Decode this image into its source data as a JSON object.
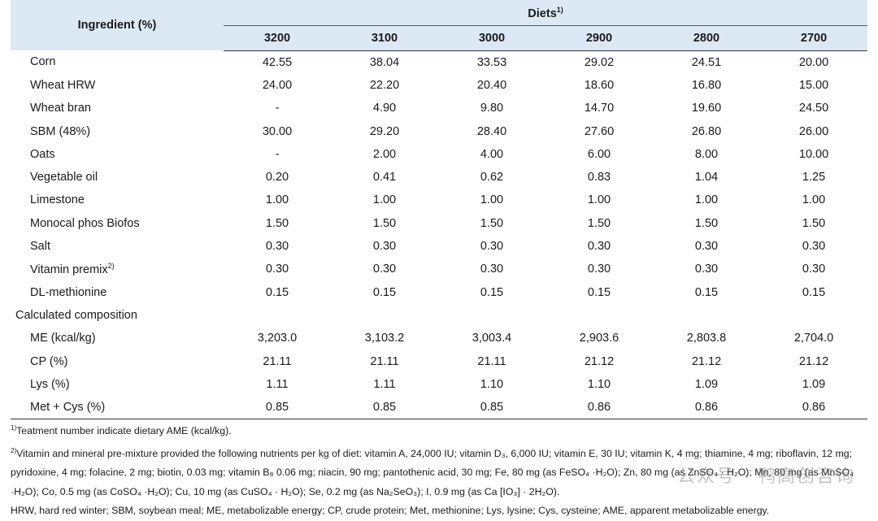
{
  "table": {
    "header": {
      "ingredient": "Ingredient (%)",
      "diets": "Diets",
      "diets_note": "1)",
      "columns": [
        "3200",
        "3100",
        "3000",
        "2900",
        "2800",
        "2700"
      ]
    },
    "rows": [
      {
        "label": "Corn",
        "values": [
          "42.55",
          "38.04",
          "33.53",
          "29.02",
          "24.51",
          "20.00"
        ]
      },
      {
        "label": "Wheat HRW",
        "values": [
          "24.00",
          "22.20",
          "20.40",
          "18.60",
          "16.80",
          "15.00"
        ]
      },
      {
        "label": "Wheat bran",
        "values": [
          "-",
          "4.90",
          "9.80",
          "14.70",
          "19.60",
          "24.50"
        ]
      },
      {
        "label": "SBM (48%)",
        "values": [
          "30.00",
          "29.20",
          "28.40",
          "27.60",
          "26.80",
          "26.00"
        ]
      },
      {
        "label": "Oats",
        "values": [
          "-",
          "2.00",
          "4.00",
          "6.00",
          "8.00",
          "10.00"
        ]
      },
      {
        "label": "Vegetable oil",
        "values": [
          "0.20",
          "0.41",
          "0.62",
          "0.83",
          "1.04",
          "1.25"
        ]
      },
      {
        "label": "Limestone",
        "values": [
          "1.00",
          "1.00",
          "1.00",
          "1.00",
          "1.00",
          "1.00"
        ]
      },
      {
        "label": "Monocal phos Biofos",
        "values": [
          "1.50",
          "1.50",
          "1.50",
          "1.50",
          "1.50",
          "1.50"
        ]
      },
      {
        "label": "Salt",
        "values": [
          "0.30",
          "0.30",
          "0.30",
          "0.30",
          "0.30",
          "0.30"
        ]
      },
      {
        "label": "Vitamin premix",
        "note": "2)",
        "values": [
          "0.30",
          "0.30",
          "0.30",
          "0.30",
          "0.30",
          "0.30"
        ]
      },
      {
        "label": "DL-methionine",
        "values": [
          "0.15",
          "0.15",
          "0.15",
          "0.15",
          "0.15",
          "0.15"
        ]
      }
    ],
    "section_label": "Calculated composition",
    "calc_rows": [
      {
        "label": "ME (kcal/kg)",
        "values": [
          "3,203.0",
          "3,103.2",
          "3,003.4",
          "2,903.6",
          "2,803.8",
          "2,704.0"
        ]
      },
      {
        "label": "CP (%)",
        "values": [
          "21.11",
          "21.11",
          "21.11",
          "21.12",
          "21.12",
          "21.12"
        ]
      },
      {
        "label": "Lys (%)",
        "values": [
          "1.11",
          "1.11",
          "1.10",
          "1.10",
          "1.09",
          "1.09"
        ]
      },
      {
        "label": "Met + Cys (%)",
        "values": [
          "0.85",
          "0.85",
          "0.85",
          "0.86",
          "0.86",
          "0.86"
        ]
      }
    ]
  },
  "footnotes": {
    "fn1_mark": "1)",
    "fn1_text": "Teatment number indicate dietary AME (kcal/kg).",
    "fn2_mark": "2)",
    "fn2_text": "Vitamin and mineral pre-mixture provided the following nutrients per kg of diet: vitamin A, 24,000 IU; vitamin D₃, 6,000 IU; vitamin E, 30 IU; vitamin K, 4 mg; thiamine, 4 mg; riboflavin, 12 mg; pyridoxine, 4 mg; folacine, 2 mg; biotin, 0.03 mg; vitamin B₈ 0.06 mg; niacin, 90 mg; pantothenic acid, 30 mg; Fe, 80 mg (as FeSO₄ ·H₂O); Zn, 80 mg (as ZnSO₄ · H₂O); Mn, 80 mg (as MnSO₄ ·H₂O); Co, 0.5 mg (as CoSO₄ ·H₂O); Cu, 10 mg (as CuSO₄ · H₂O); Se, 0.2 mg (as Na₂SeO₃); I, 0.9 mg (as Ca [IO₃] · 2H₂O).",
    "abbrev": "HRW, hard red winter; SBM, soybean meal; ME, metabolizable energy; CP, crude protein; Met, methionine; Lys, lysine; Cys, cysteine; AME, apparent metabolizable energy."
  },
  "watermark": "公众号 · 鸭高创咨询"
}
